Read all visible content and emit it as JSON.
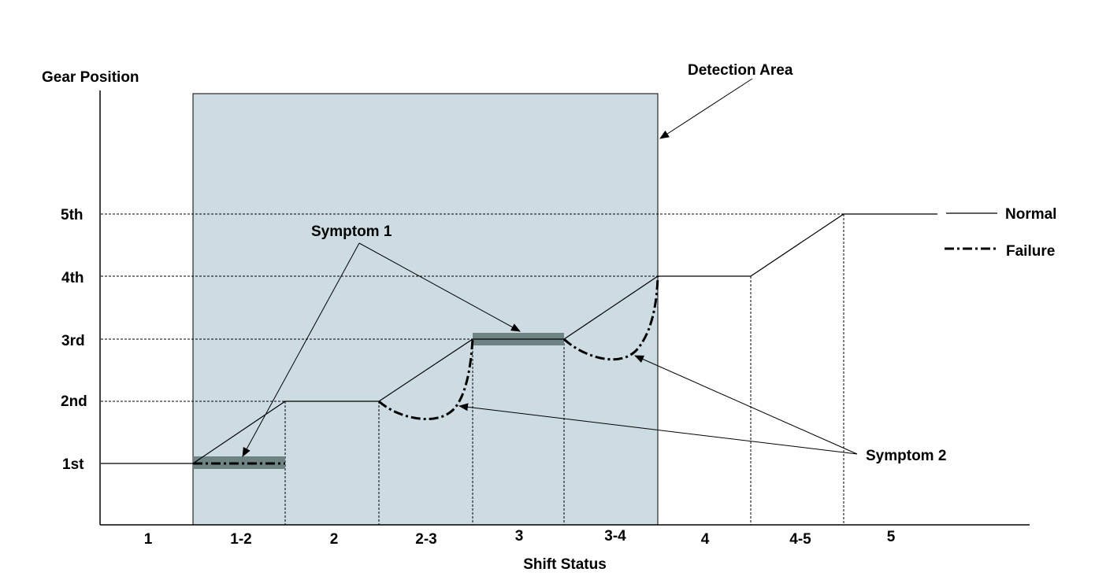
{
  "axes": {
    "y_title": "Gear Position",
    "x_title": "Shift Status"
  },
  "gear_levels": [
    "1st",
    "2nd",
    "3rd",
    "4th",
    "5th"
  ],
  "shift_states": [
    "1",
    "1-2",
    "2",
    "2-3",
    "3",
    "3-4",
    "4",
    "4-5",
    "5"
  ],
  "annotations": {
    "detection_area": "Detection Area",
    "symptom1": "Symptom 1",
    "symptom2": "Symptom 2"
  },
  "legend": {
    "normal": "Normal",
    "failure": "Failure"
  },
  "colors": {
    "detection_area": "#cddbe2",
    "symptom_bar": "#6e8484",
    "line": "#000000"
  }
}
